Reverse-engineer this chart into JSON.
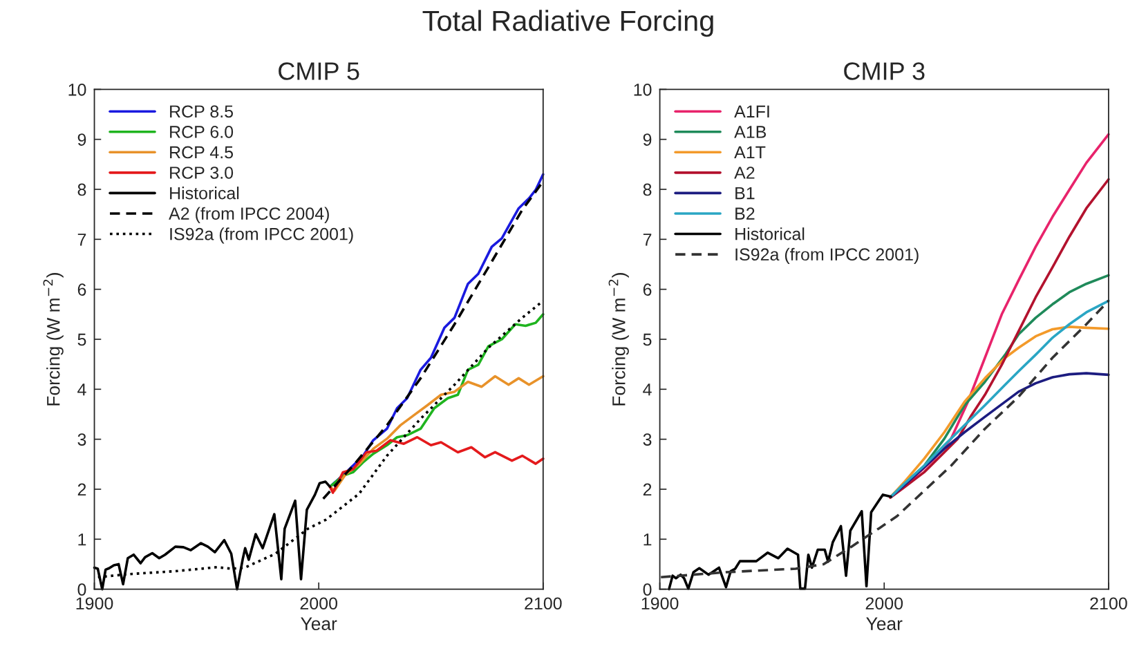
{
  "chart_data": [
    {
      "type": "line",
      "title": "Total Radiative Forcing",
      "subtitle": "CMIP 5",
      "xlabel": "Year",
      "ylabel": "Forcing (W m$^{−2}$)",
      "xlim": [
        1900,
        2100
      ],
      "xticks": [
        1900,
        2000,
        2100
      ],
      "ylim": [
        0,
        10
      ],
      "yticks": [
        0,
        1,
        2,
        3,
        4,
        5,
        6,
        7,
        8,
        9,
        10
      ],
      "grid": false,
      "legend": "top left",
      "series": [
        {
          "name": "RCP 8.5",
          "color": "#1a1adf",
          "line_style": "solid",
          "x": [
            2005,
            2007,
            2012.3,
            2019.8,
            2024.3,
            2030.4,
            2034.9,
            2039.4,
            2045.4,
            2050,
            2056,
            2060.5,
            2066.5,
            2071.1,
            2077.1,
            2081.6,
            2089.1,
            2093.7,
            2096.7,
            2100
          ],
          "values": [
            2.05,
            null,
            2.34,
            2.67,
            2.98,
            3.21,
            3.62,
            3.82,
            4.39,
            4.63,
            5.23,
            5.43,
            6.11,
            6.31,
            6.85,
            7.02,
            7.62,
            7.82,
            7.99,
            8.3
          ]
        },
        {
          "name": "RCP 6.0",
          "color": "#1fb41f",
          "line_style": "solid",
          "x": [
            2005,
            2007,
            2010.8,
            2015.3,
            2019.8,
            2024.3,
            2030.4,
            2034.9,
            2039.4,
            2045.4,
            2051.5,
            2057.5,
            2062,
            2066.5,
            2071.1,
            2075.6,
            2081.6,
            2087.6,
            2092.2,
            2096.7,
            2100
          ],
          "values": [
            2.05,
            null,
            2.27,
            2.34,
            2.54,
            2.71,
            2.88,
            3.04,
            3.08,
            3.21,
            3.62,
            3.82,
            3.89,
            4.39,
            4.49,
            4.86,
            5.0,
            5.3,
            5.27,
            5.33,
            5.5
          ]
        },
        {
          "name": "RCP 4.5",
          "color": "#e8922a",
          "line_style": "solid",
          "x": [
            2005,
            2007,
            2012,
            2018,
            2024.3,
            2030.4,
            2036.4,
            2042.4,
            2048.4,
            2054.5,
            2060.5,
            2066.5,
            2072.6,
            2078.6,
            2084.6,
            2089.1,
            2093.7,
            2100
          ],
          "values": [
            2.05,
            1.97,
            2.3,
            2.5,
            2.81,
            3.01,
            3.28,
            3.48,
            3.68,
            3.89,
            3.95,
            4.15,
            4.05,
            4.26,
            4.09,
            4.22,
            4.09,
            4.26
          ]
        },
        {
          "name": "RCP 3.0",
          "color": "#e41a1c",
          "line_style": "solid",
          "x": [
            2005,
            2006.3,
            2010.8,
            2015.3,
            2021.3,
            2025.8,
            2031.9,
            2037.9,
            2043.9,
            2050,
            2054.5,
            2062,
            2068,
            2074.1,
            2078.6,
            2086.1,
            2090.7,
            2096.7,
            2100
          ],
          "values": [
            2.05,
            1.93,
            2.34,
            2.4,
            2.74,
            2.77,
            2.98,
            2.91,
            3.04,
            2.88,
            2.94,
            2.74,
            2.84,
            2.64,
            2.74,
            2.57,
            2.67,
            2.51,
            2.61
          ]
        },
        {
          "name": "Historical",
          "color": "#000000",
          "line_style": "solid",
          "x": [
            1900,
            1901.5,
            1903.5,
            1905,
            1906.6,
            1908.7,
            1910.8,
            1912.8,
            1914.9,
            1917.5,
            1920.6,
            1922.6,
            1925.8,
            1928.9,
            1931.5,
            1936.1,
            1939.7,
            1942.9,
            1947.5,
            1950.6,
            1953.7,
            1957.9,
            1961,
            1963.6,
            1966.2,
            1967.2,
            1968.8,
            1971.9,
            1975,
            1980.2,
            1983.3,
            1984.8,
            1989.5,
            1992.1,
            1994.7,
            1998.3,
            2000.4,
            2003,
            2005
          ],
          "values": [
            0.43,
            0.41,
            0,
            0.39,
            0.42,
            0.48,
            0.5,
            0.1,
            0.62,
            0.69,
            0.52,
            0.64,
            0.72,
            0.62,
            0.69,
            0.85,
            0.84,
            0.78,
            0.92,
            0.85,
            0.74,
            0.98,
            0.71,
            0,
            0.62,
            0.82,
            0.59,
            1.1,
            0.82,
            1.5,
            0.2,
            1.21,
            1.77,
            0.2,
            1.59,
            1.89,
            2.12,
            2.15,
            2.05
          ]
        },
        {
          "name": "A2 (from IPCC 2004)",
          "color": "#000000",
          "line_style": "dashed",
          "x": [
            2002,
            2015.3,
            2030.4,
            2045.4,
            2060.5,
            2075.6,
            2090.7,
            2100
          ],
          "values": [
            1.81,
            2.47,
            3.28,
            4.22,
            5.3,
            6.44,
            7.59,
            8.16
          ]
        },
        {
          "name": "IS92a (from IPCC 2001)",
          "color": "#000000",
          "line_style": "dotted",
          "x": [
            1901.6,
            1915,
            1936,
            1954.6,
            1961,
            1967,
            1980.7,
            1995.2,
            2003.2,
            2018,
            2030.4,
            2045.4,
            2060.5,
            2075.6,
            2090.7,
            2100
          ],
          "values": [
            0.24,
            0.3,
            0.36,
            0.44,
            0.41,
            0.43,
            0.71,
            1.21,
            1.39,
            1.91,
            2.67,
            3.41,
            4.09,
            4.83,
            5.43,
            5.77
          ]
        }
      ]
    },
    {
      "type": "line",
      "subtitle": "CMIP 3",
      "xlabel": "Year",
      "ylabel": "Forcing (W m$^{−2}$)",
      "xlim": [
        1900,
        2100
      ],
      "xticks": [
        1900,
        2000,
        2100
      ],
      "ylim": [
        0,
        10
      ],
      "yticks": [
        0,
        1,
        2,
        3,
        4,
        5,
        6,
        7,
        8,
        9,
        10
      ],
      "grid": false,
      "legend": "top left",
      "series": [
        {
          "name": "A1FI",
          "color": "#e8236b",
          "line_style": "solid",
          "x": [
            2003,
            2008.7,
            2014.8,
            2022.3,
            2029.8,
            2037.3,
            2044.9,
            2052.4,
            2059.9,
            2067.5,
            2075,
            2082.5,
            2090.1,
            2100
          ],
          "values": [
            1.85,
            2.07,
            2.3,
            2.61,
            3.01,
            3.75,
            4.63,
            5.5,
            6.18,
            6.85,
            7.45,
            7.99,
            8.53,
            9.1
          ]
        },
        {
          "name": "A1B",
          "color": "#1f8a5a",
          "line_style": "solid",
          "x": [
            2003,
            2008.7,
            2017.8,
            2026.8,
            2035.8,
            2044.9,
            2053.9,
            2059.9,
            2067.5,
            2075,
            2082.5,
            2090.1,
            2100
          ],
          "values": [
            1.85,
            2.1,
            2.47,
            3.01,
            3.68,
            4.15,
            4.69,
            5.1,
            5.43,
            5.7,
            5.94,
            6.11,
            6.28
          ]
        },
        {
          "name": "A1T",
          "color": "#f39a2a",
          "line_style": "solid",
          "x": [
            2003,
            2008.7,
            2017.8,
            2026.8,
            2035.8,
            2044.9,
            2053.9,
            2059.9,
            2067.5,
            2075,
            2082.5,
            2090.1,
            2100
          ],
          "values": [
            1.85,
            2.13,
            2.61,
            3.14,
            3.75,
            4.22,
            4.63,
            4.83,
            5.06,
            5.2,
            5.25,
            5.23,
            5.21
          ]
        },
        {
          "name": "A2",
          "color": "#b3122e",
          "line_style": "solid",
          "x": [
            2002.7,
            2008.7,
            2017.8,
            2026.8,
            2032.8,
            2038.9,
            2044.9,
            2052.4,
            2059.9,
            2067.5,
            2075,
            2082.5,
            2090.1,
            2100
          ],
          "values": [
            1.83,
            2.03,
            2.34,
            2.74,
            3.01,
            3.48,
            3.89,
            4.49,
            5.16,
            5.84,
            6.44,
            7.05,
            7.62,
            8.2
          ]
        },
        {
          "name": "B1",
          "color": "#1c1c80",
          "line_style": "solid",
          "x": [
            2003,
            2008.7,
            2017.8,
            2026.8,
            2035.8,
            2044.9,
            2053.9,
            2059.9,
            2067.5,
            2075,
            2082.5,
            2090.1,
            2100
          ],
          "values": [
            1.85,
            2.07,
            2.44,
            2.81,
            3.14,
            3.45,
            3.75,
            3.95,
            4.12,
            4.24,
            4.3,
            4.32,
            4.29
          ]
        },
        {
          "name": "B2",
          "color": "#2aa6c4",
          "line_style": "solid",
          "x": [
            2003,
            2008.7,
            2017.8,
            2026.8,
            2035.8,
            2044.9,
            2053.9,
            2059.9,
            2067.5,
            2075,
            2082.5,
            2090.1,
            2100
          ],
          "values": [
            1.85,
            2.1,
            2.47,
            2.88,
            3.28,
            3.68,
            4.09,
            4.36,
            4.69,
            5.03,
            5.3,
            5.54,
            5.77
          ]
        },
        {
          "name": "Historical",
          "color": "#000000",
          "line_style": "solid",
          "x": [
            1904.1,
            1905.7,
            1907.2,
            1909.3,
            1910.8,
            1912.7,
            1915,
            1917.6,
            1921.7,
            1926.4,
            1929.5,
            1931.6,
            1933.6,
            1935.7,
            1943,
            1948.1,
            1952.8,
            1956.9,
            1961.6,
            1962.6,
            1964.7,
            1966.2,
            1967.8,
            1970.4,
            1973.5,
            1975,
            1977.1,
            1980.7,
            1983,
            1984.9,
            1990,
            1992.1,
            1994.2,
            1999.4,
            2003
          ],
          "values": [
            0,
            0.27,
            0.22,
            0.29,
            0.22,
            0.01,
            0.34,
            0.42,
            0.29,
            0.43,
            0.04,
            0.36,
            0.41,
            0.56,
            0.56,
            0.73,
            0.62,
            0.81,
            0.69,
            0.01,
            0.01,
            0.69,
            0.43,
            0.79,
            0.79,
            0.55,
            0.94,
            1.26,
            0.27,
            1.17,
            1.56,
            0.06,
            1.54,
            1.89,
            1.85
          ]
        },
        {
          "name": "IS92a (from IPCC 2001)",
          "color": "#333333",
          "line_style": "dashed",
          "x": [
            1900.5,
            1929.5,
            1960.6,
            1973,
            1985.4,
            1997.8,
            2005.7,
            2029.8,
            2044.9,
            2059.9,
            2075,
            2090.1,
            2100
          ],
          "values": [
            0.24,
            0.34,
            0.41,
            0.5,
            0.85,
            1.22,
            1.46,
            2.47,
            3.21,
            3.85,
            4.63,
            5.3,
            5.77
          ]
        }
      ]
    }
  ]
}
